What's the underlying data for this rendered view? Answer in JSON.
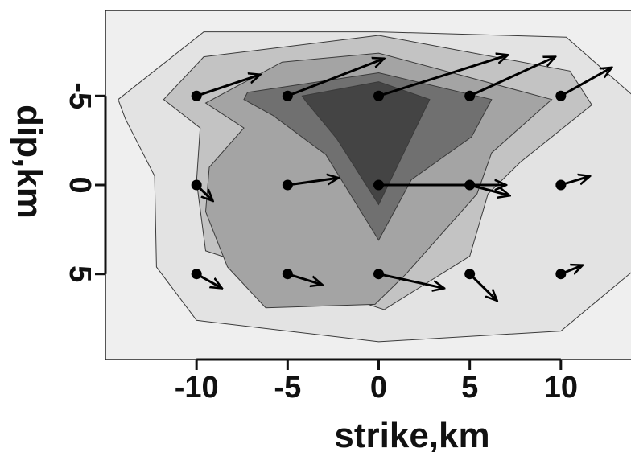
{
  "chart_data": {
    "type": "contour-vector",
    "xlabel": "strike,km",
    "ylabel": "dip,km",
    "xlim": [
      -15,
      15
    ],
    "ylim": [
      9.8,
      -9.8
    ],
    "x_ticks": [
      -10,
      -5,
      0,
      5,
      10
    ],
    "y_ticks": [
      -5,
      0,
      5
    ],
    "x_tick_labels": [
      "-10",
      "-5",
      "0",
      "5",
      "10"
    ],
    "y_tick_labels": [
      "-5",
      "0",
      "5"
    ],
    "grid": false,
    "legend": "none",
    "colors": {
      "background": "#efefef",
      "level1": "#e3e3e3",
      "level2": "#c3c3c3",
      "level3": "#a4a4a4",
      "level4": "#707070",
      "level5": "#444444",
      "arrow": "#000000"
    },
    "contours": [
      {
        "level": 1,
        "polygon": [
          [
            -9.6,
            -8.6
          ],
          [
            0,
            -8.6
          ],
          [
            10.3,
            -8.3
          ],
          [
            14.2,
            -4.8
          ],
          [
            14.0,
            4.8
          ],
          [
            10.0,
            8.2
          ],
          [
            0,
            8.8
          ],
          [
            -10.0,
            7.6
          ],
          [
            -12.2,
            4.6
          ],
          [
            -12.3,
            -0.5
          ],
          [
            -13.9,
            -3.7
          ],
          [
            -14.3,
            -4.8
          ]
        ]
      },
      {
        "level": 2,
        "polygon": [
          [
            -9.6,
            -7.2
          ],
          [
            0,
            -8.4
          ],
          [
            10.5,
            -6.4
          ],
          [
            11.7,
            -4.5
          ],
          [
            7.8,
            -1.3
          ],
          [
            6.0,
            0.5
          ],
          [
            5.0,
            4.0
          ],
          [
            0.3,
            7.0
          ],
          [
            -9.5,
            3.7
          ],
          [
            -10.0,
            -0.2
          ],
          [
            -9.8,
            -3.2
          ],
          [
            -11.8,
            -4.8
          ]
        ]
      },
      {
        "level": 3,
        "polygon": [
          [
            -9.5,
            -4.6
          ],
          [
            -5.3,
            -6.9
          ],
          [
            0,
            -7.4
          ],
          [
            9.5,
            -4.8
          ],
          [
            6.2,
            -1.8
          ],
          [
            5.4,
            0.5
          ],
          [
            1.5,
            5.0
          ],
          [
            -0.2,
            6.7
          ],
          [
            -6.2,
            6.9
          ],
          [
            -8.3,
            4.6
          ],
          [
            -9.5,
            1.5
          ],
          [
            -9.3,
            -1.0
          ],
          [
            -7.4,
            -3.2
          ]
        ]
      },
      {
        "level": 4,
        "polygon": [
          [
            -7.2,
            -5.2
          ],
          [
            0,
            -6.3
          ],
          [
            6.2,
            -4.8
          ],
          [
            5.1,
            -2.7
          ],
          [
            1.8,
            -0.3
          ],
          [
            0,
            3.1
          ],
          [
            -2.9,
            -1.7
          ],
          [
            -5.8,
            -3.9
          ],
          [
            -7.4,
            -4.8
          ]
        ]
      },
      {
        "level": 5,
        "polygon": [
          [
            -4.2,
            -5.0
          ],
          [
            0,
            -5.8
          ],
          [
            2.8,
            -4.8
          ],
          [
            0,
            1.1
          ],
          [
            -2.3,
            -2.6
          ],
          [
            -4.0,
            -4.7
          ]
        ]
      }
    ],
    "vectors": [
      {
        "x": -10,
        "y": -5,
        "dx": 3.5,
        "dy": -1.2
      },
      {
        "x": -5,
        "y": -5,
        "dx": 5.3,
        "dy": -2.1
      },
      {
        "x": 0,
        "y": -5,
        "dx": 7.1,
        "dy": -2.3
      },
      {
        "x": 5,
        "y": -5,
        "dx": 4.7,
        "dy": -2.2
      },
      {
        "x": 10,
        "y": -5,
        "dx": 2.8,
        "dy": -1.6
      },
      {
        "x": -10,
        "y": 0,
        "dx": 0.9,
        "dy": 0.9
      },
      {
        "x": -5,
        "y": 0,
        "dx": 2.8,
        "dy": -0.4
      },
      {
        "x": 0,
        "y": 0,
        "dx": 7.0,
        "dy": 0.0
      },
      {
        "x": 5,
        "y": 0,
        "dx": 2.2,
        "dy": 0.6
      },
      {
        "x": 10,
        "y": 0,
        "dx": 1.6,
        "dy": -0.5
      },
      {
        "x": -10,
        "y": 5,
        "dx": 1.4,
        "dy": 0.8
      },
      {
        "x": -5,
        "y": 5,
        "dx": 1.9,
        "dy": 0.6
      },
      {
        "x": 0,
        "y": 5,
        "dx": 3.6,
        "dy": 0.8
      },
      {
        "x": 5,
        "y": 5,
        "dx": 1.5,
        "dy": 1.5
      },
      {
        "x": 10,
        "y": 5,
        "dx": 1.2,
        "dy": -0.5
      }
    ]
  }
}
